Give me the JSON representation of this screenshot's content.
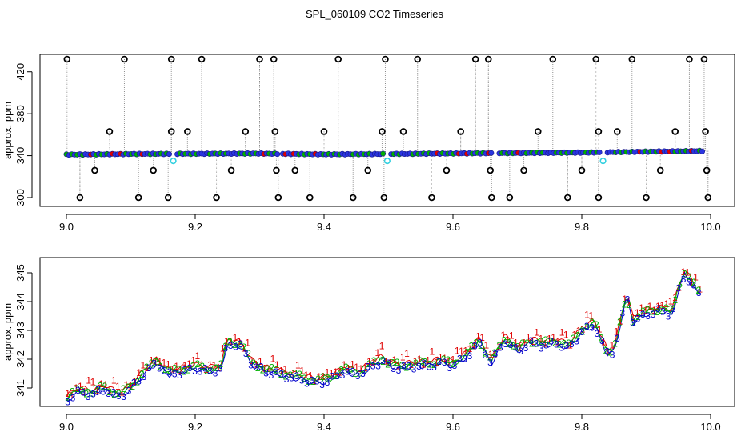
{
  "title": "SPL_060109  CO2 Timeseries",
  "colors": {
    "axis": "#000000",
    "series1": "#e00000",
    "series2": "#00b000",
    "series3": "#0000cc",
    "fill": "#2a35e0",
    "outlier": "#000000",
    "cyan": "#33d0e0",
    "vline": "#888888"
  },
  "chart_data": [
    {
      "type": "scatter",
      "ylabel": "approx. ppm",
      "xlabel": "",
      "xlim": [
        9.0,
        10.0
      ],
      "ylim": [
        300,
        432
      ],
      "xticks": [
        "9.0",
        "9.2",
        "9.4",
        "9.6",
        "9.8",
        "10.0"
      ],
      "yticks": [
        "300",
        "340",
        "380",
        "420"
      ],
      "baseline": {
        "x": [
          9.0,
          9.1,
          9.2,
          9.3,
          9.4,
          9.5,
          9.6,
          9.7,
          9.8,
          9.9,
          9.99
        ],
        "y": [
          341.0,
          341.6,
          341.8,
          342.0,
          341.3,
          341.6,
          342.1,
          342.5,
          342.9,
          343.8,
          344.5
        ]
      },
      "gaps": [
        9.166,
        9.333,
        9.498,
        9.665,
        9.833
      ],
      "outliers": [
        [
          9.001,
          432
        ],
        [
          9.021,
          300
        ],
        [
          9.044,
          326
        ],
        [
          9.067,
          363
        ],
        [
          9.09,
          432
        ],
        [
          9.112,
          300
        ],
        [
          9.135,
          326
        ],
        [
          9.158,
          300
        ],
        [
          9.163,
          432
        ],
        [
          9.163,
          363
        ],
        [
          9.188,
          363
        ],
        [
          9.21,
          432
        ],
        [
          9.233,
          300
        ],
        [
          9.256,
          326
        ],
        [
          9.278,
          363
        ],
        [
          9.3,
          432
        ],
        [
          9.322,
          432
        ],
        [
          9.324,
          363
        ],
        [
          9.326,
          326
        ],
        [
          9.329,
          300
        ],
        [
          9.355,
          326
        ],
        [
          9.378,
          300
        ],
        [
          9.4,
          363
        ],
        [
          9.422,
          432
        ],
        [
          9.445,
          300
        ],
        [
          9.468,
          326
        ],
        [
          9.49,
          363
        ],
        [
          9.495,
          432
        ],
        [
          9.493,
          300
        ],
        [
          9.523,
          363
        ],
        [
          9.545,
          432
        ],
        [
          9.567,
          300
        ],
        [
          9.59,
          326
        ],
        [
          9.612,
          363
        ],
        [
          9.635,
          432
        ],
        [
          9.655,
          432
        ],
        [
          9.658,
          326
        ],
        [
          9.66,
          300
        ],
        [
          9.688,
          300
        ],
        [
          9.71,
          326
        ],
        [
          9.732,
          363
        ],
        [
          9.755,
          432
        ],
        [
          9.778,
          300
        ],
        [
          9.8,
          326
        ],
        [
          9.822,
          432
        ],
        [
          9.826,
          363
        ],
        [
          9.826,
          300
        ],
        [
          9.855,
          363
        ],
        [
          9.878,
          432
        ],
        [
          9.9,
          300
        ],
        [
          9.922,
          326
        ],
        [
          9.945,
          363
        ],
        [
          9.967,
          432
        ],
        [
          9.99,
          432
        ],
        [
          9.992,
          363
        ],
        [
          9.994,
          326
        ],
        [
          9.996,
          300
        ]
      ],
      "cyan_points": [
        [
          9.166,
          335
        ],
        [
          9.498,
          335
        ],
        [
          9.833,
          335
        ]
      ]
    },
    {
      "type": "line",
      "ylabel": "approx. ppm",
      "xlabel": "",
      "xlim": [
        9.0,
        10.0
      ],
      "ylim": [
        340.6,
        345.4
      ],
      "xticks": [
        "9.0",
        "9.2",
        "9.4",
        "9.6",
        "9.8",
        "10.0"
      ],
      "yticks": [
        "341",
        "342",
        "343",
        "344",
        "345"
      ],
      "series": [
        {
          "name": "1",
          "marker": "1"
        },
        {
          "name": "2",
          "marker": "2"
        },
        {
          "name": "3",
          "marker": "3"
        }
      ],
      "x": [
        9.0,
        9.02,
        9.04,
        9.06,
        9.08,
        9.1,
        9.12,
        9.14,
        9.16,
        9.18,
        9.2,
        9.22,
        9.24,
        9.25,
        9.27,
        9.29,
        9.31,
        9.33,
        9.35,
        9.37,
        9.39,
        9.41,
        9.43,
        9.45,
        9.47,
        9.49,
        9.5,
        9.52,
        9.54,
        9.56,
        9.58,
        9.6,
        9.62,
        9.64,
        9.66,
        9.68,
        9.7,
        9.72,
        9.74,
        9.76,
        9.78,
        9.8,
        9.82,
        9.84,
        9.85,
        9.87,
        9.88,
        9.9,
        9.92,
        9.94,
        9.95,
        9.96,
        9.98
      ],
      "y": [
        340.6,
        340.9,
        340.8,
        341.0,
        340.7,
        341.0,
        341.5,
        341.9,
        341.5,
        341.6,
        341.7,
        341.6,
        341.7,
        342.6,
        342.5,
        341.8,
        341.6,
        341.5,
        341.4,
        341.3,
        341.2,
        341.3,
        341.6,
        341.5,
        341.7,
        342.0,
        341.8,
        341.7,
        341.8,
        341.8,
        341.9,
        341.8,
        342.1,
        342.6,
        341.9,
        342.7,
        342.3,
        342.6,
        342.5,
        342.6,
        342.4,
        343.0,
        343.2,
        342.2,
        342.3,
        344.2,
        343.3,
        343.6,
        343.7,
        343.6,
        344.4,
        345.0,
        344.3
      ]
    }
  ]
}
